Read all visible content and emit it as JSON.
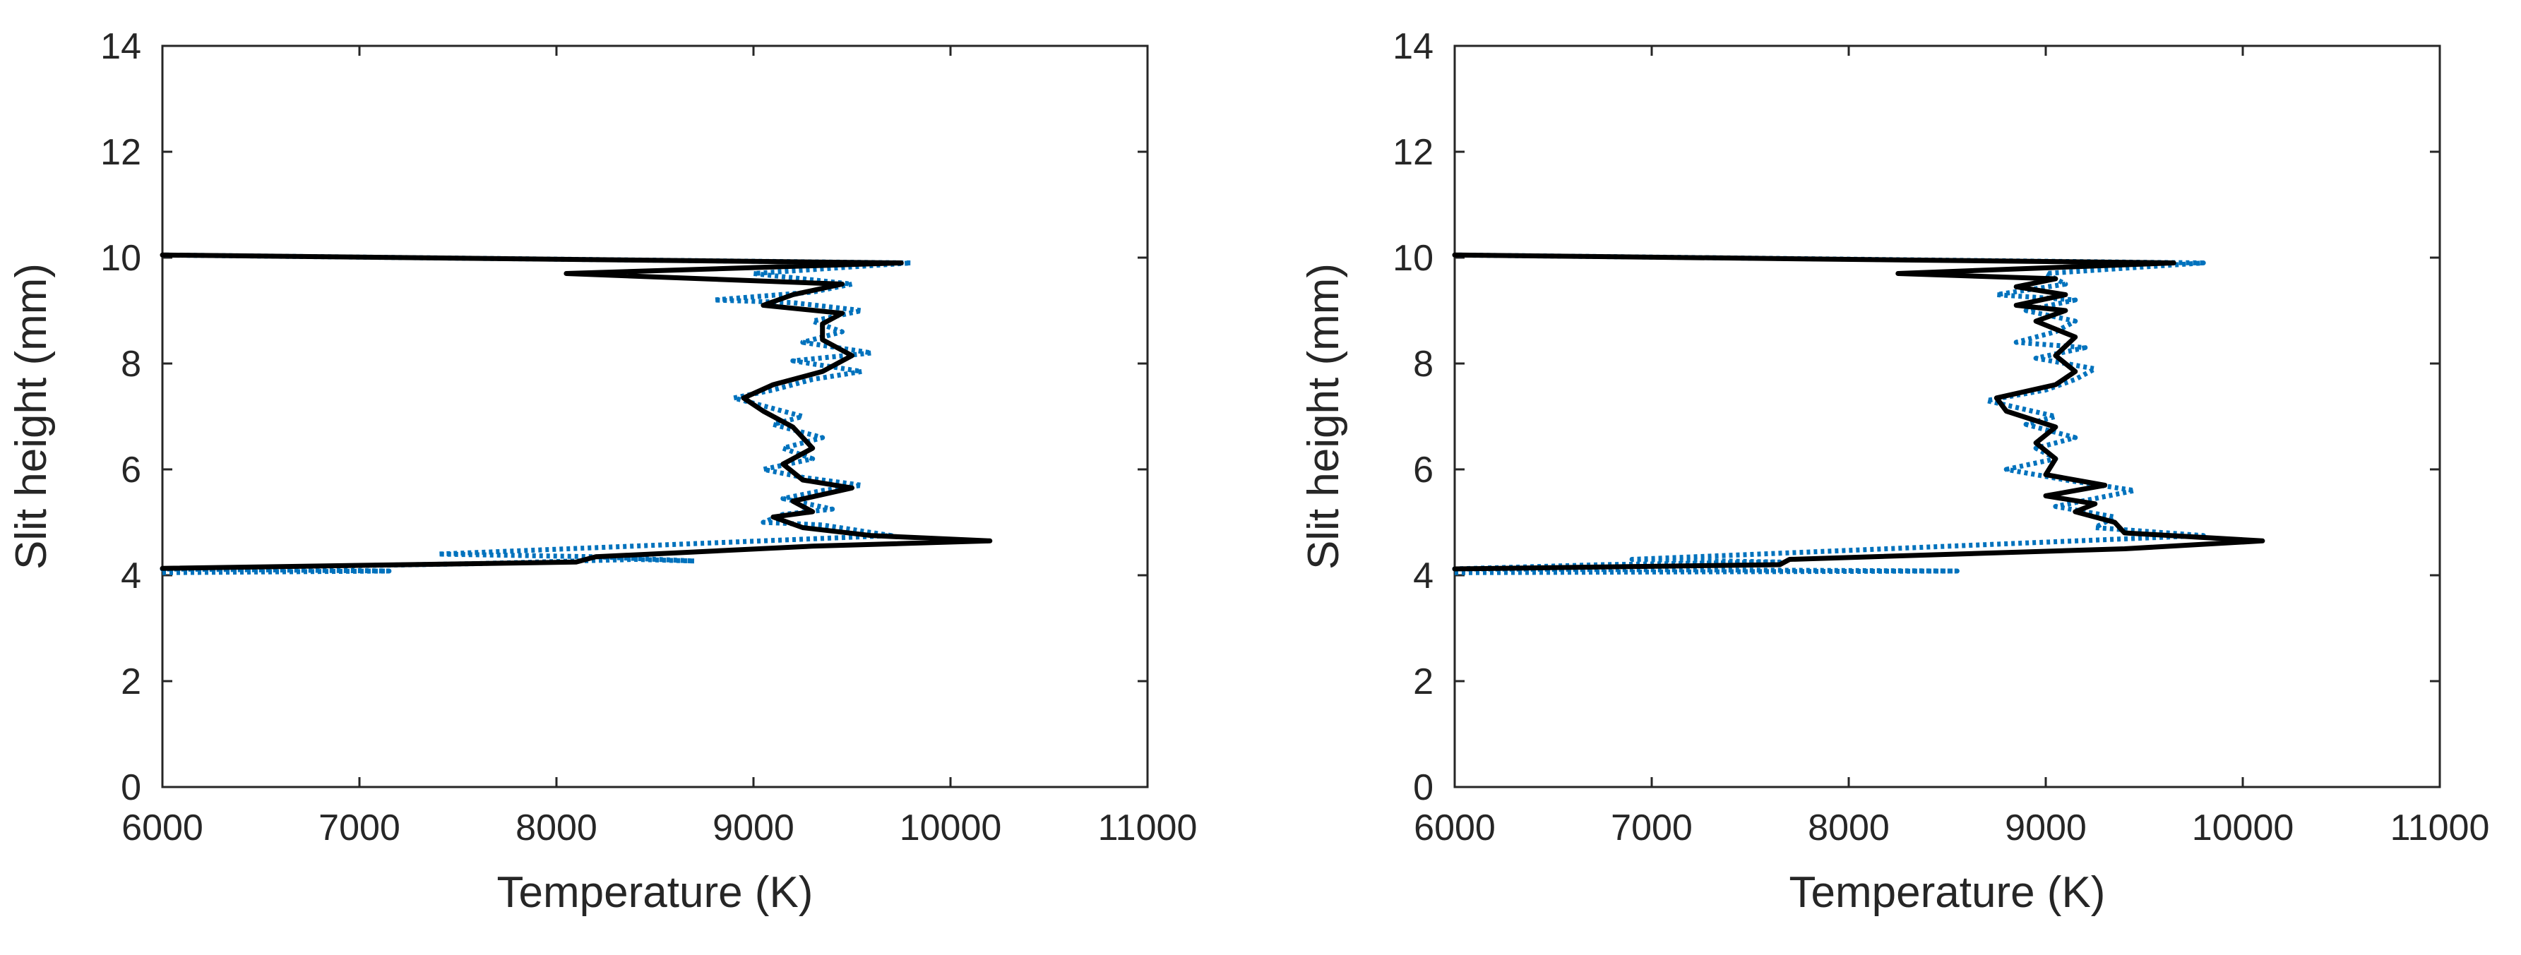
{
  "chart_data": [
    {
      "type": "line",
      "xlabel": "Temperature (K)",
      "ylabel": "Slit height (mm)",
      "xlim": [
        6000,
        11000
      ],
      "ylim": [
        0,
        14
      ],
      "xticks": [
        "6000",
        "7000",
        "8000",
        "9000",
        "10000",
        "11000"
      ],
      "yticks": [
        "0",
        "2",
        "4",
        "6",
        "8",
        "10",
        "12",
        "14"
      ],
      "grid": false,
      "legend": "none",
      "colors": {
        "measured": "#0072BD",
        "fit": "#000000",
        "axes": "#262626"
      },
      "series": [
        {
          "style": "dotted",
          "points": [
            [
              6000,
              4.05
            ],
            [
              7150,
              4.08
            ],
            [
              6000,
              4.12
            ],
            [
              7600,
              4.22
            ],
            [
              8400,
              4.3
            ],
            [
              8700,
              4.27
            ],
            [
              8200,
              4.35
            ],
            [
              7400,
              4.4
            ],
            [
              9700,
              4.75
            ],
            [
              9350,
              4.95
            ],
            [
              9050,
              5.0
            ],
            [
              9150,
              5.15
            ],
            [
              9400,
              5.25
            ],
            [
              9150,
              5.45
            ],
            [
              9350,
              5.6
            ],
            [
              9550,
              5.7
            ],
            [
              9250,
              5.85
            ],
            [
              9050,
              6.0
            ],
            [
              9300,
              6.2
            ],
            [
              9150,
              6.4
            ],
            [
              9350,
              6.6
            ],
            [
              9100,
              6.85
            ],
            [
              9250,
              7.0
            ],
            [
              8900,
              7.35
            ],
            [
              9100,
              7.5
            ],
            [
              9300,
              7.7
            ],
            [
              9550,
              7.85
            ],
            [
              9200,
              8.05
            ],
            [
              9600,
              8.2
            ],
            [
              9250,
              8.4
            ],
            [
              9450,
              8.6
            ],
            [
              9300,
              8.8
            ],
            [
              9550,
              9.0
            ],
            [
              9200,
              9.15
            ],
            [
              8800,
              9.2
            ],
            [
              9300,
              9.35
            ],
            [
              9500,
              9.5
            ],
            [
              9000,
              9.7
            ],
            [
              9800,
              9.9
            ],
            [
              6000,
              10.05
            ]
          ]
        },
        {
          "style": "solid",
          "points": [
            [
              6000,
              4.13
            ],
            [
              8100,
              4.25
            ],
            [
              8200,
              4.35
            ],
            [
              9300,
              4.55
            ],
            [
              10200,
              4.65
            ],
            [
              9600,
              4.75
            ],
            [
              9250,
              4.9
            ],
            [
              9100,
              5.1
            ],
            [
              9300,
              5.2
            ],
            [
              9200,
              5.4
            ],
            [
              9500,
              5.65
            ],
            [
              9250,
              5.8
            ],
            [
              9150,
              6.1
            ],
            [
              9300,
              6.4
            ],
            [
              9200,
              6.8
            ],
            [
              9050,
              7.1
            ],
            [
              8950,
              7.35
            ],
            [
              9100,
              7.6
            ],
            [
              9350,
              7.85
            ],
            [
              9500,
              8.15
            ],
            [
              9350,
              8.45
            ],
            [
              9350,
              8.75
            ],
            [
              9450,
              8.95
            ],
            [
              9050,
              9.1
            ],
            [
              9200,
              9.3
            ],
            [
              9450,
              9.5
            ],
            [
              8050,
              9.7
            ],
            [
              9750,
              9.9
            ],
            [
              6000,
              10.05
            ]
          ]
        }
      ]
    },
    {
      "type": "line",
      "xlabel": "Temperature (K)",
      "ylabel": "Slit height (mm)",
      "xlim": [
        6000,
        11000
      ],
      "ylim": [
        0,
        14
      ],
      "xticks": [
        "6000",
        "7000",
        "8000",
        "9000",
        "10000",
        "11000"
      ],
      "yticks": [
        "0",
        "2",
        "4",
        "6",
        "8",
        "10",
        "12",
        "14"
      ],
      "grid": false,
      "legend": "none",
      "colors": {
        "measured": "#0072BD",
        "fit": "#000000",
        "axes": "#262626"
      },
      "series": [
        {
          "style": "dotted",
          "points": [
            [
              6000,
              4.05
            ],
            [
              8550,
              4.08
            ],
            [
              6000,
              4.12
            ],
            [
              6750,
              4.2
            ],
            [
              7650,
              4.25
            ],
            [
              6900,
              4.3
            ],
            [
              9800,
              4.75
            ],
            [
              9250,
              4.9
            ],
            [
              9350,
              5.1
            ],
            [
              9050,
              5.3
            ],
            [
              9250,
              5.45
            ],
            [
              9450,
              5.6
            ],
            [
              9100,
              5.8
            ],
            [
              8800,
              6.0
            ],
            [
              9050,
              6.2
            ],
            [
              8950,
              6.4
            ],
            [
              9150,
              6.6
            ],
            [
              8900,
              6.85
            ],
            [
              9050,
              7.0
            ],
            [
              8700,
              7.3
            ],
            [
              9000,
              7.5
            ],
            [
              9150,
              7.7
            ],
            [
              9250,
              7.9
            ],
            [
              8950,
              8.1
            ],
            [
              9200,
              8.3
            ],
            [
              8850,
              8.4
            ],
            [
              9050,
              8.6
            ],
            [
              9150,
              8.8
            ],
            [
              8900,
              9.0
            ],
            [
              9150,
              9.2
            ],
            [
              8750,
              9.3
            ],
            [
              9100,
              9.5
            ],
            [
              9000,
              9.7
            ],
            [
              9800,
              9.9
            ],
            [
              6000,
              10.05
            ]
          ]
        },
        {
          "style": "solid",
          "points": [
            [
              6000,
              4.12
            ],
            [
              7650,
              4.2
            ],
            [
              7700,
              4.3
            ],
            [
              9400,
              4.5
            ],
            [
              10100,
              4.65
            ],
            [
              9400,
              4.8
            ],
            [
              9350,
              5.0
            ],
            [
              9150,
              5.2
            ],
            [
              9250,
              5.35
            ],
            [
              9000,
              5.5
            ],
            [
              9300,
              5.7
            ],
            [
              9000,
              5.9
            ],
            [
              9050,
              6.2
            ],
            [
              8950,
              6.5
            ],
            [
              9050,
              6.8
            ],
            [
              8800,
              7.1
            ],
            [
              8750,
              7.35
            ],
            [
              9050,
              7.6
            ],
            [
              9150,
              7.85
            ],
            [
              9050,
              8.15
            ],
            [
              9150,
              8.5
            ],
            [
              8950,
              8.8
            ],
            [
              9100,
              9.0
            ],
            [
              8850,
              9.1
            ],
            [
              9100,
              9.3
            ],
            [
              8850,
              9.45
            ],
            [
              9050,
              9.6
            ],
            [
              8250,
              9.7
            ],
            [
              9650,
              9.9
            ],
            [
              6000,
              10.05
            ]
          ]
        }
      ]
    }
  ]
}
